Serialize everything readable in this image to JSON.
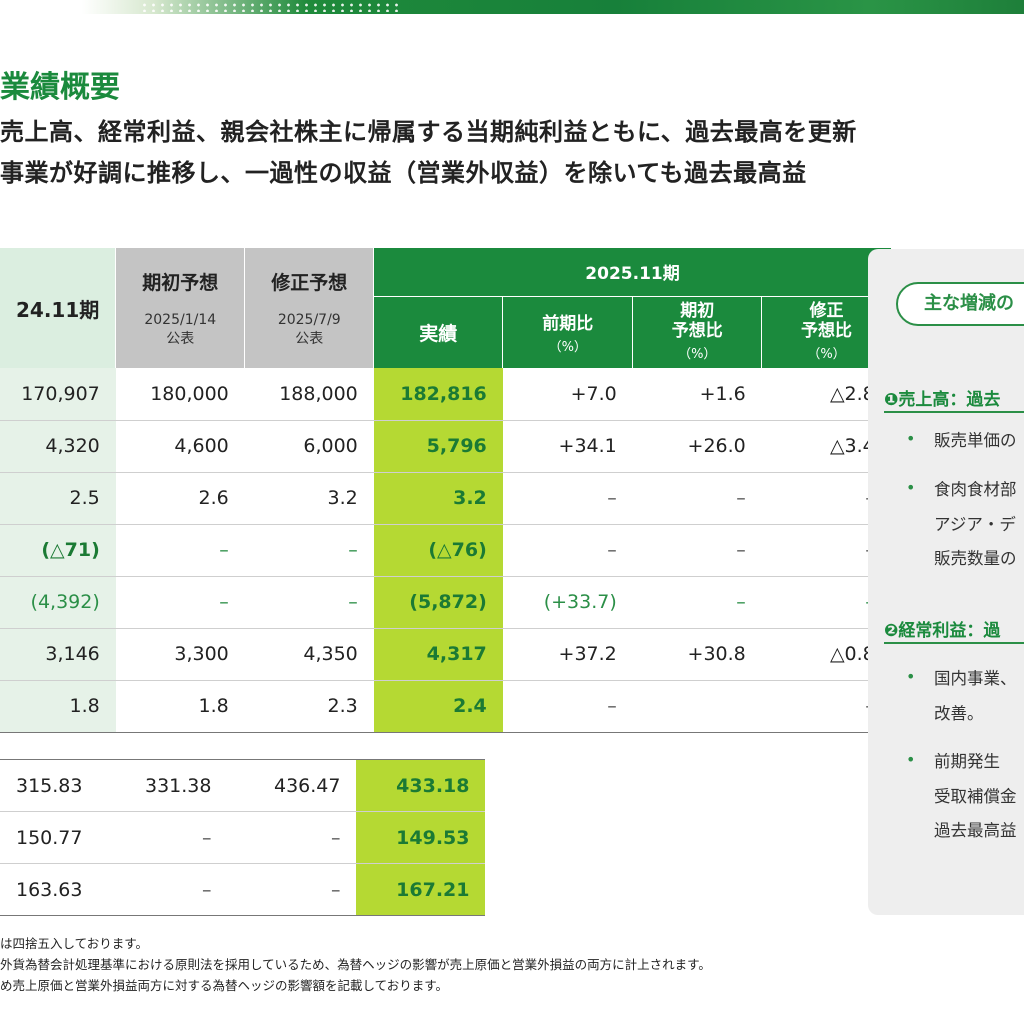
{
  "title": "業績概要",
  "subtitles": [
    "売上高、経常利益、親会社株主に帰属する当期純利益ともに、過去最高を更新",
    "事業が好調に推移し、一過性の収益（営業外収益）を除いても過去最高益"
  ],
  "table": {
    "header": {
      "prev": "24.11期",
      "initial": {
        "title": "期初予想",
        "date": "2025/1/14",
        "note": "公表"
      },
      "revised": {
        "title": "修正予想",
        "date": "2025/7/9",
        "note": "公表"
      },
      "period": "2025.11期",
      "actual": "実績",
      "yoy": {
        "line1": "前期比",
        "pct": "（%）"
      },
      "vs_initial": {
        "line1": "期初",
        "line2": "予想比",
        "pct": "（%）"
      },
      "vs_revised": {
        "line1": "修正",
        "line2": "予想比",
        "pct": "（%）"
      }
    },
    "rows": [
      {
        "prev": "170,907",
        "initial": "180,000",
        "revised": "188,000",
        "actual": "182,816",
        "yoy": "+7.0",
        "vs_initial": "+1.6",
        "vs_revised": "△2.8"
      },
      {
        "prev": "4,320",
        "initial": "4,600",
        "revised": "6,000",
        "actual": "5,796",
        "yoy": "+34.1",
        "vs_initial": "+26.0",
        "vs_revised": "△3.4"
      },
      {
        "prev": "2.5",
        "initial": "2.6",
        "revised": "3.2",
        "actual": "3.2",
        "yoy": "–",
        "vs_initial": "–",
        "vs_revised": "–"
      },
      {
        "prev": "(△71)",
        "initial": "–",
        "revised": "–",
        "actual": "(△76)",
        "yoy": "–",
        "vs_initial": "–",
        "vs_revised": "–"
      },
      {
        "prev": "(4,392)",
        "initial": "–",
        "revised": "–",
        "actual": "(5,872)",
        "yoy": "(+33.7)",
        "vs_initial": "–",
        "vs_revised": "–"
      },
      {
        "prev": "3,146",
        "initial": "3,300",
        "revised": "4,350",
        "actual": "4,317",
        "yoy": "+37.2",
        "vs_initial": "+30.8",
        "vs_revised": "△0.8"
      },
      {
        "prev": "1.8",
        "initial": "1.8",
        "revised": "2.3",
        "actual": "2.4",
        "yoy": "–",
        "vs_initial": "",
        "vs_revised": "–"
      }
    ],
    "lower_rows": [
      {
        "prev": "315.83",
        "initial": "331.38",
        "revised": "436.47",
        "actual": "433.18"
      },
      {
        "prev": "150.77",
        "initial": "–",
        "revised": "–",
        "actual": "149.53"
      },
      {
        "prev": "163.63",
        "initial": "–",
        "revised": "–",
        "actual": "167.21"
      }
    ]
  },
  "notes": [
    "は四捨五入しております。",
    "外貨為替会計処理基準における原則法を採用しているため、為替ヘッジの影響が売上原価と営業外損益の両方に計上されます。",
    "め売上原価と営業外損益両方に対する為替ヘッジの影響額を記載しております。"
  ],
  "panel": {
    "pill": "主な増減の",
    "section1": {
      "heading": "❶売上高：過去",
      "bullets": [
        {
          "lines": [
            "販売単価の"
          ]
        },
        {
          "lines": [
            "食肉食材部",
            "アジア・デ",
            "販売数量の"
          ]
        }
      ]
    },
    "section2": {
      "heading": "❷経常利益：過",
      "bullets": [
        {
          "lines": [
            "国内事業、",
            "改善。"
          ]
        },
        {
          "lines": [
            "前期発生",
            "受取補償金",
            "過去最高益"
          ]
        }
      ]
    }
  }
}
